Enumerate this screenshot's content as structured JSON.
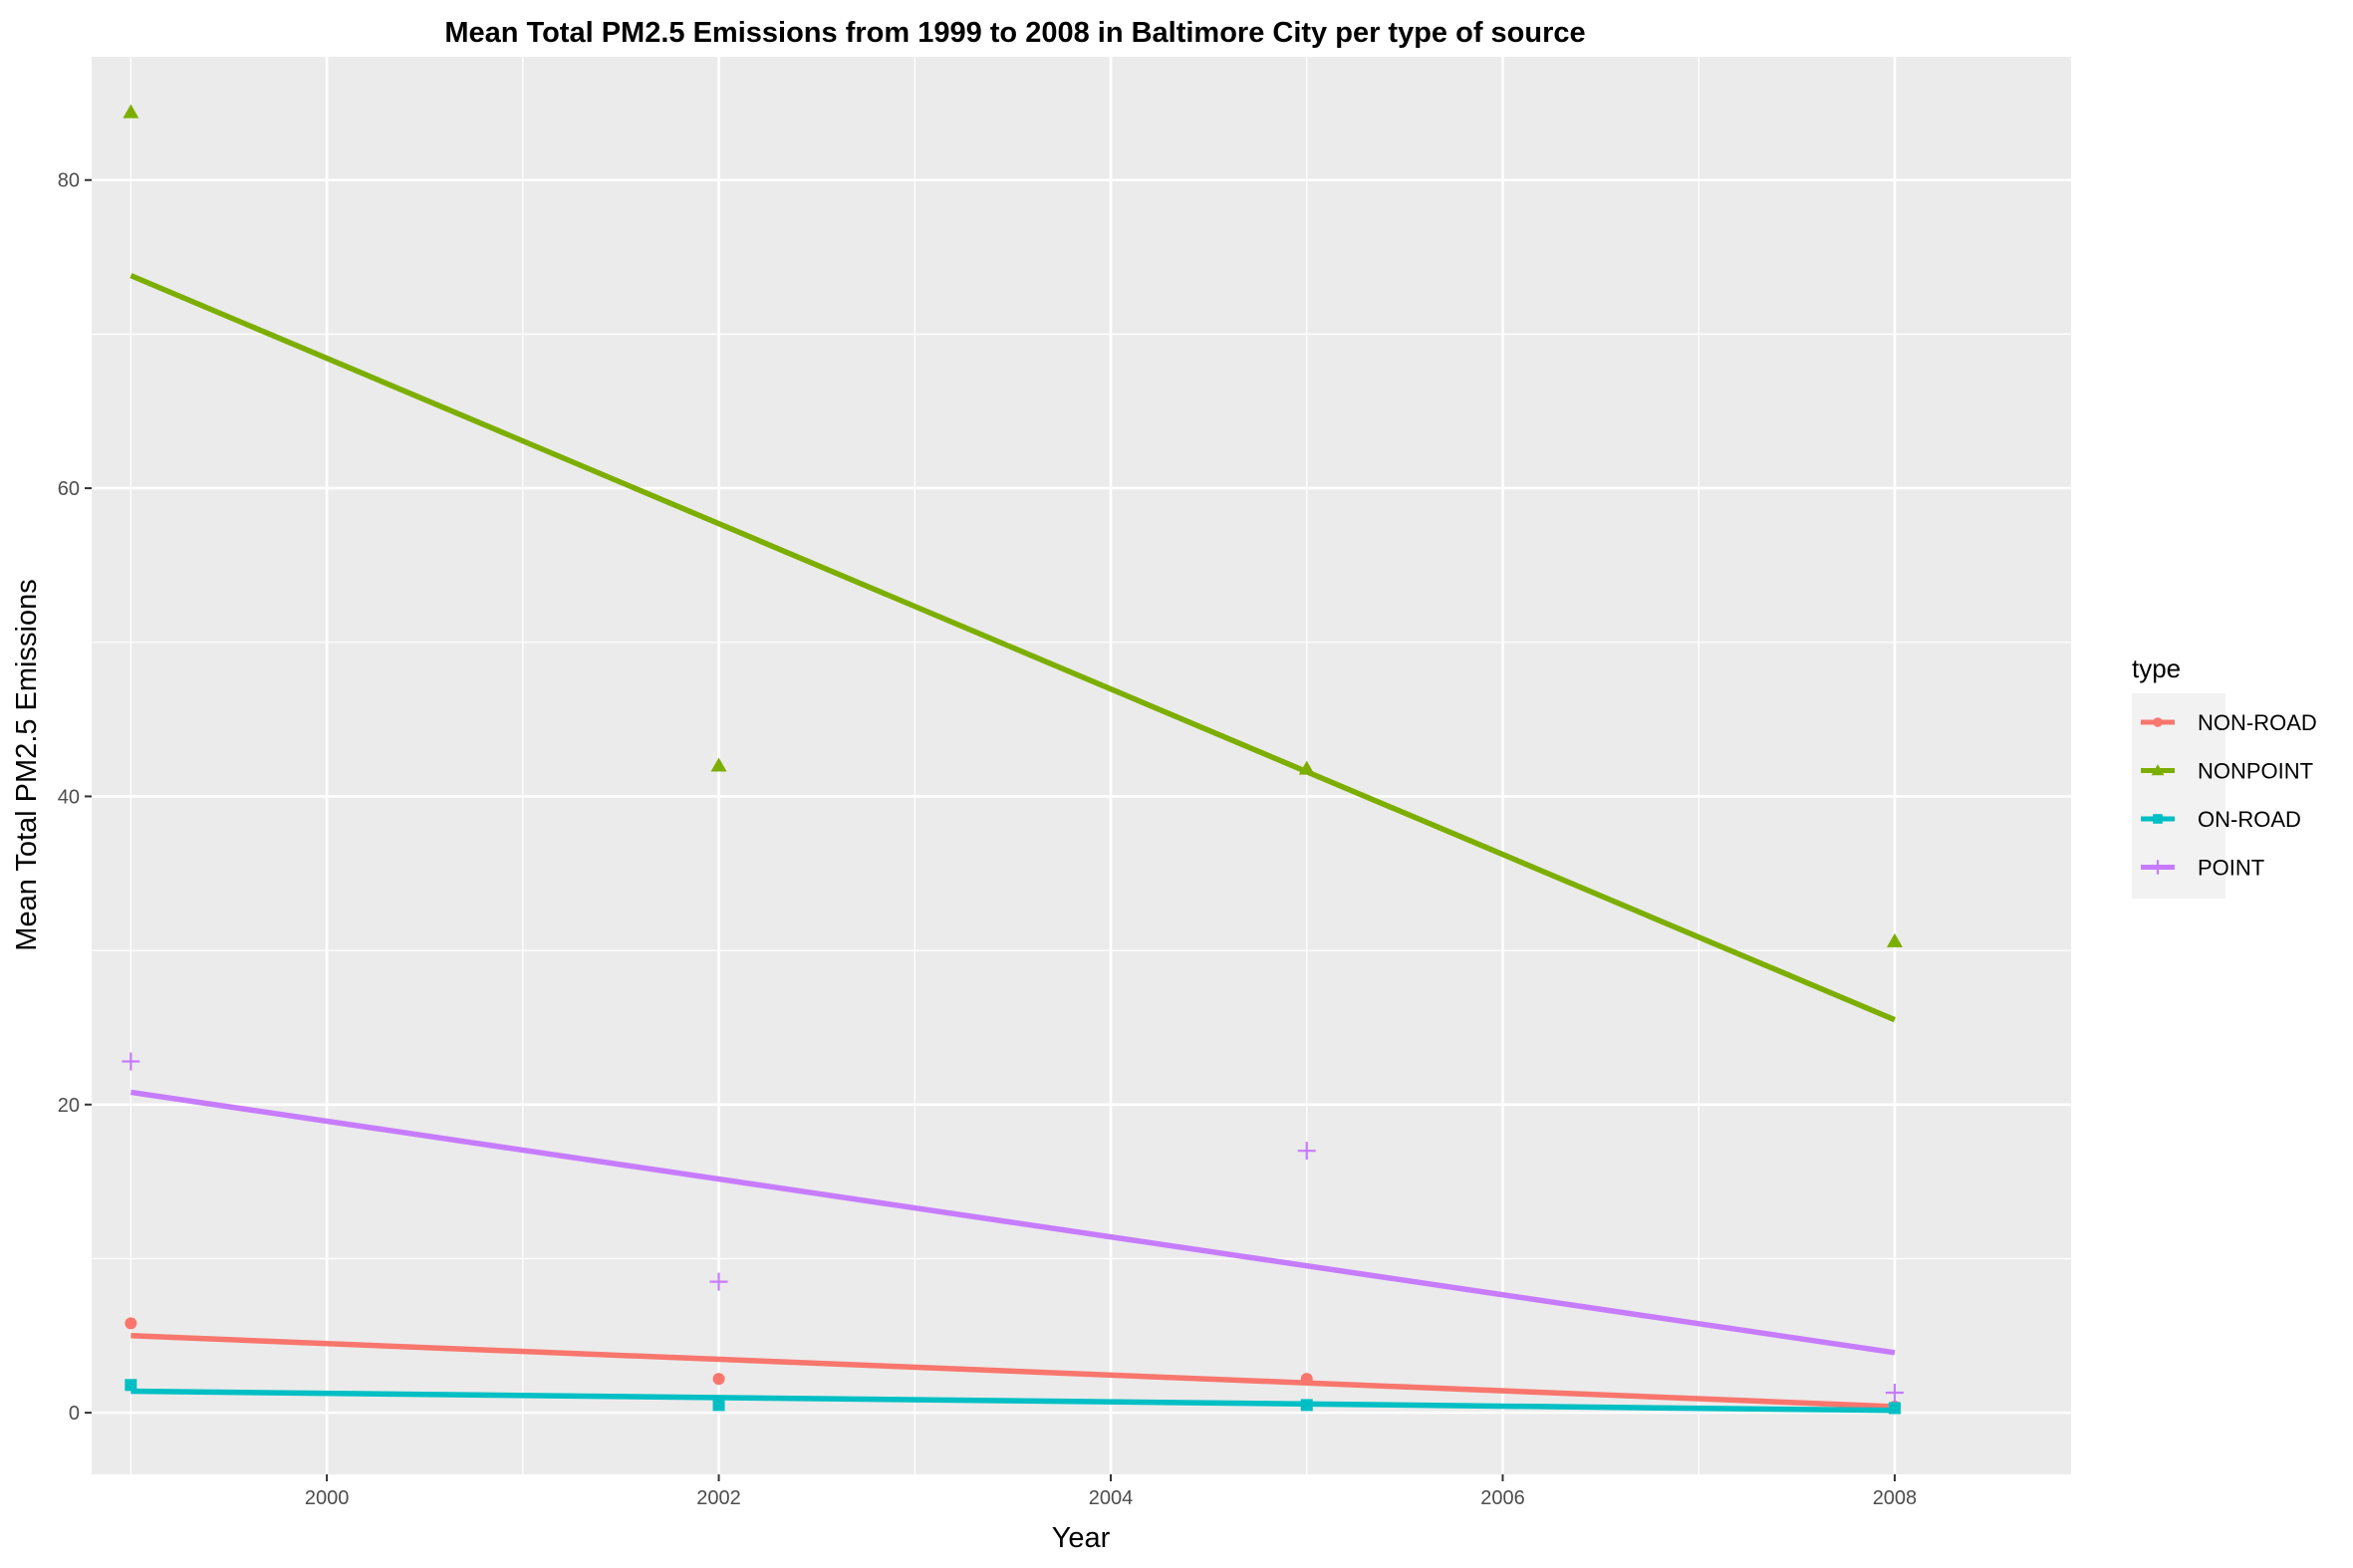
{
  "chart_data": {
    "type": "scatter",
    "title": "Mean Total PM2.5 Emissions from 1999 to 2008 in Baltimore City per type of source",
    "xlabel": "Year",
    "ylabel": "Mean Total PM2.5 Emissions",
    "xlim": [
      1998.8,
      2008.9
    ],
    "ylim": [
      -4,
      88
    ],
    "x_ticks": [
      2000,
      2002,
      2004,
      2006,
      2008
    ],
    "x_tick_labels": [
      "2000",
      "2002",
      "2004",
      "2006",
      "2008"
    ],
    "y_ticks": [
      0,
      20,
      40,
      60,
      80
    ],
    "y_tick_labels": [
      "0",
      "20",
      "40",
      "60",
      "80"
    ],
    "grid": true,
    "legend": {
      "title": "type",
      "position": "right"
    },
    "series": [
      {
        "name": "NON-ROAD",
        "color": "#F8766D",
        "marker": "circle",
        "x": [
          1999,
          2002,
          2005,
          2008
        ],
        "y": [
          5.8,
          2.2,
          2.2,
          0.4
        ],
        "trend": [
          [
            1999,
            5.0
          ],
          [
            2008,
            0.4
          ]
        ]
      },
      {
        "name": "NONPOINT",
        "color": "#7CAE00",
        "marker": "triangle",
        "x": [
          1999,
          2002,
          2005,
          2008
        ],
        "y": [
          84.4,
          42.0,
          41.8,
          30.6
        ],
        "trend": [
          [
            1999,
            73.8
          ],
          [
            2008,
            25.5
          ]
        ]
      },
      {
        "name": "ON-ROAD",
        "color": "#00BFC4",
        "marker": "square",
        "x": [
          1999,
          2002,
          2005,
          2008
        ],
        "y": [
          1.8,
          0.5,
          0.5,
          0.3
        ],
        "trend": [
          [
            1999,
            1.4
          ],
          [
            2008,
            0.15
          ]
        ]
      },
      {
        "name": "POINT",
        "color": "#C77CFF",
        "marker": "plus",
        "x": [
          1999,
          2002,
          2005,
          2008
        ],
        "y": [
          22.8,
          8.5,
          17.0,
          1.3
        ],
        "trend": [
          [
            1999,
            20.8
          ],
          [
            2008,
            3.9
          ]
        ]
      }
    ]
  }
}
